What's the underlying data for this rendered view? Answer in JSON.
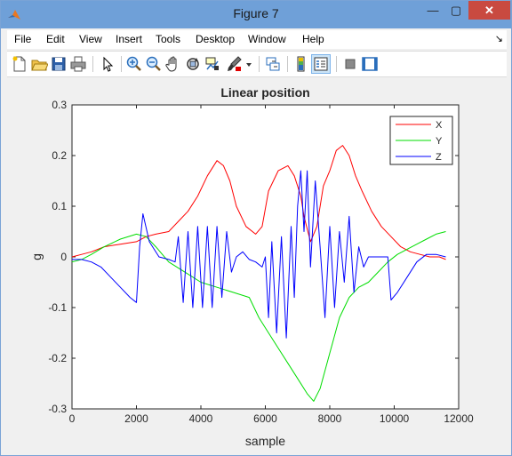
{
  "window": {
    "title": "Figure 7",
    "minimize_glyph": "—",
    "maximize_glyph": "▢",
    "close_glyph": "✕",
    "icon": "matlab-icon"
  },
  "menu": {
    "items": [
      "File",
      "Edit",
      "View",
      "Insert",
      "Tools",
      "Desktop",
      "Window",
      "Help"
    ],
    "dock_glyph": "↘"
  },
  "toolbar": {
    "buttons": [
      "new-figure-icon",
      "open-file-icon",
      "save-icon",
      "print-icon",
      "edit-plot-arrow-icon",
      "zoom-in-icon",
      "zoom-out-icon",
      "pan-hand-icon",
      "rotate-3d-icon",
      "data-cursor-icon",
      "brush-icon",
      "link-plot-icon",
      "insert-colorbar-icon",
      "insert-legend-icon",
      "hide-plot-tools-icon",
      "show-plot-tools-icon"
    ]
  },
  "colors": {
    "X": "#ff0000",
    "Y": "#00dd00",
    "Z": "#0000ff",
    "accent": "#6fa0d8"
  },
  "chart_data": {
    "type": "line",
    "title": "Linear position",
    "xlabel": "sample",
    "ylabel": "g",
    "xlim": [
      0,
      12000
    ],
    "ylim": [
      -0.3,
      0.3
    ],
    "xticks": [
      0,
      2000,
      4000,
      6000,
      8000,
      10000,
      12000
    ],
    "xtick_labels": [
      "0",
      "2000",
      "4000",
      "6000",
      "8000",
      "10000",
      "12000"
    ],
    "yticks": [
      -0.3,
      -0.2,
      -0.1,
      0,
      0.1,
      0.2,
      0.3
    ],
    "ytick_labels": [
      "-0.3",
      "-0.2",
      "-0.1",
      "0",
      "0.1",
      "0.2",
      "0.3"
    ],
    "grid": false,
    "legend_position": "top-right",
    "series": [
      {
        "name": "X",
        "color": "#ff0000",
        "x": [
          0,
          300,
          600,
          1000,
          1500,
          2000,
          2300,
          2600,
          3000,
          3300,
          3600,
          3900,
          4200,
          4500,
          4700,
          4900,
          5100,
          5400,
          5700,
          5900,
          6100,
          6400,
          6700,
          6900,
          7100,
          7200,
          7400,
          7600,
          7800,
          8000,
          8200,
          8400,
          8600,
          8800,
          9000,
          9300,
          9600,
          9900,
          10200,
          10500,
          10800,
          11100,
          11400,
          11600
        ],
        "values": [
          0.0,
          0.005,
          0.01,
          0.02,
          0.025,
          0.03,
          0.04,
          0.045,
          0.05,
          0.07,
          0.09,
          0.12,
          0.16,
          0.19,
          0.18,
          0.15,
          0.1,
          0.06,
          0.045,
          0.06,
          0.13,
          0.17,
          0.18,
          0.16,
          0.12,
          0.08,
          0.03,
          0.06,
          0.14,
          0.17,
          0.21,
          0.22,
          0.2,
          0.16,
          0.13,
          0.09,
          0.06,
          0.04,
          0.02,
          0.01,
          0.005,
          0.0,
          0.0,
          -0.005
        ]
      },
      {
        "name": "Y",
        "color": "#00dd00",
        "x": [
          0,
          300,
          600,
          1000,
          1500,
          2000,
          2300,
          2600,
          3000,
          3500,
          4000,
          4500,
          5000,
          5500,
          5800,
          6100,
          6400,
          6700,
          7000,
          7300,
          7500,
          7700,
          8000,
          8300,
          8600,
          8900,
          9200,
          9500,
          9800,
          10100,
          10400,
          10700,
          11000,
          11300,
          11600
        ],
        "values": [
          -0.01,
          -0.005,
          0.005,
          0.02,
          0.035,
          0.045,
          0.04,
          0.02,
          -0.01,
          -0.03,
          -0.05,
          -0.06,
          -0.07,
          -0.08,
          -0.12,
          -0.15,
          -0.18,
          -0.21,
          -0.24,
          -0.27,
          -0.285,
          -0.26,
          -0.19,
          -0.12,
          -0.08,
          -0.06,
          -0.05,
          -0.03,
          -0.01,
          0.005,
          0.015,
          0.025,
          0.035,
          0.045,
          0.05
        ]
      },
      {
        "name": "Z",
        "color": "#0000ff",
        "x": [
          0,
          300,
          600,
          900,
          1200,
          1500,
          1800,
          2000,
          2100,
          2200,
          2400,
          2700,
          3000,
          3200,
          3300,
          3450,
          3600,
          3750,
          3900,
          4050,
          4200,
          4350,
          4500,
          4650,
          4800,
          4950,
          5100,
          5300,
          5500,
          5700,
          5900,
          6000,
          6100,
          6200,
          6350,
          6500,
          6650,
          6800,
          6900,
          7000,
          7100,
          7200,
          7300,
          7400,
          7550,
          7700,
          7850,
          8000,
          8150,
          8300,
          8450,
          8600,
          8750,
          8900,
          9050,
          9200,
          9400,
          9600,
          9800,
          9900,
          10100,
          10400,
          10700,
          11000,
          11300,
          11600
        ],
        "values": [
          -0.005,
          -0.005,
          -0.01,
          -0.02,
          -0.04,
          -0.06,
          -0.08,
          -0.09,
          0.02,
          0.085,
          0.03,
          0.0,
          -0.005,
          -0.01,
          0.04,
          -0.09,
          0.05,
          -0.1,
          0.06,
          -0.1,
          0.06,
          -0.1,
          0.06,
          -0.08,
          0.05,
          -0.03,
          0.0,
          0.01,
          -0.005,
          -0.01,
          -0.02,
          0.0,
          -0.12,
          0.03,
          -0.15,
          0.04,
          -0.16,
          0.06,
          -0.08,
          0.1,
          0.17,
          0.05,
          0.17,
          -0.02,
          0.15,
          0.02,
          -0.12,
          0.06,
          -0.1,
          0.05,
          -0.05,
          0.08,
          -0.07,
          0.02,
          -0.02,
          0.0,
          0.0,
          0.0,
          0.0,
          -0.085,
          -0.07,
          -0.04,
          -0.01,
          0.005,
          0.005,
          0.0
        ]
      }
    ]
  }
}
